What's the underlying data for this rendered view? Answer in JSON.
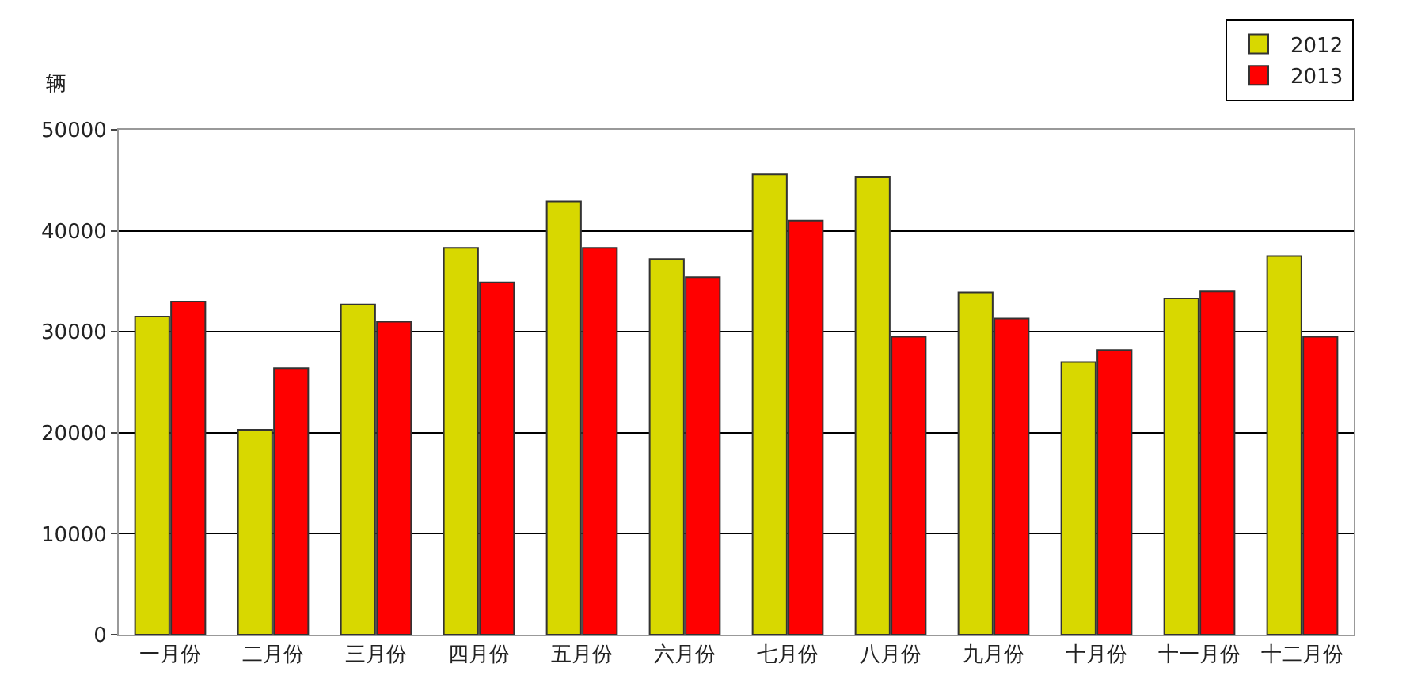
{
  "chart_data": {
    "type": "bar",
    "ylabel": "辆",
    "categories": [
      "一月份",
      "二月份",
      "三月份",
      "四月份",
      "五月份",
      "六月份",
      "七月份",
      "八月份",
      "九月份",
      "十月份",
      "十一月份",
      "十二月份"
    ],
    "series": [
      {
        "name": "2012",
        "color": "#d8d800",
        "values": [
          31500,
          20300,
          32700,
          38300,
          42900,
          37200,
          45600,
          45300,
          33900,
          27000,
          33300,
          37500
        ]
      },
      {
        "name": "2013",
        "color": "#ff0000",
        "values": [
          33000,
          26400,
          31000,
          34900,
          38300,
          35400,
          41000,
          29500,
          31300,
          28200,
          34000,
          29500
        ]
      }
    ],
    "ylim": [
      0,
      50000
    ],
    "yticks": [
      0,
      10000,
      20000,
      30000,
      40000,
      50000
    ],
    "grid": "y",
    "legend": "top right"
  }
}
